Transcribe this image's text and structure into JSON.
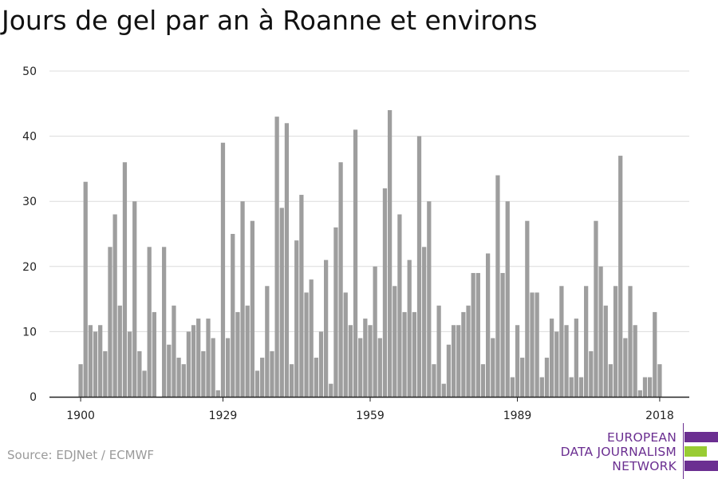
{
  "title": "Jours de gel par an à Roanne et environs",
  "source": "Source: EDJNet / ECMWF",
  "logo": {
    "lines": [
      "EUROPEAN",
      "DATA JOURNALISM",
      "NETWORK"
    ],
    "colors": {
      "purple": "#6b2f91",
      "green": "#99cc33"
    }
  },
  "colors": {
    "bar": "#9e9e9e",
    "grid": "#dcdcdc",
    "axis": "#222222"
  },
  "chart_data": {
    "type": "bar",
    "title": "Jours de gel par an à Roanne et environs",
    "xlabel": "",
    "ylabel": "",
    "ylim": [
      0,
      50
    ],
    "yticks": [
      0,
      10,
      20,
      30,
      40,
      50
    ],
    "xticks": [
      1900,
      1929,
      1959,
      1989,
      2018
    ],
    "grid": true,
    "x_start": 1900,
    "x_end": 2018,
    "values": [
      5,
      33,
      11,
      10,
      11,
      7,
      23,
      28,
      14,
      36,
      10,
      30,
      7,
      4,
      23,
      13,
      0,
      23,
      8,
      14,
      6,
      5,
      10,
      11,
      12,
      7,
      12,
      9,
      1,
      39,
      9,
      25,
      13,
      30,
      14,
      27,
      4,
      6,
      17,
      7,
      43,
      29,
      42,
      5,
      24,
      31,
      16,
      18,
      6,
      10,
      21,
      2,
      26,
      36,
      16,
      11,
      41,
      9,
      12,
      11,
      20,
      9,
      32,
      44,
      17,
      28,
      13,
      21,
      13,
      40,
      23,
      30,
      5,
      14,
      2,
      8,
      11,
      11,
      13,
      14,
      19,
      19,
      5,
      22,
      9,
      34,
      19,
      30,
      3,
      11,
      6,
      27,
      16,
      16,
      3,
      6,
      12,
      10,
      17,
      11,
      3,
      12,
      3,
      17,
      7,
      27,
      20,
      14,
      5,
      17,
      37,
      9,
      17,
      11,
      1,
      3,
      3,
      13,
      5
    ]
  }
}
